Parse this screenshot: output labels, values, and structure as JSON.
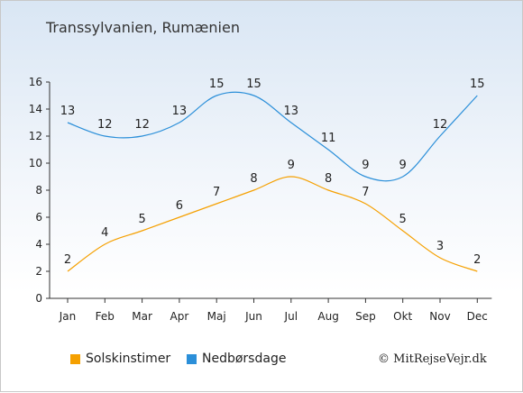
{
  "chart_data": {
    "type": "line",
    "title": "Transsylvanien, Rumænien",
    "categories": [
      "Jan",
      "Feb",
      "Mar",
      "Apr",
      "Maj",
      "Jun",
      "Jul",
      "Aug",
      "Sep",
      "Okt",
      "Nov",
      "Dec"
    ],
    "series": [
      {
        "name": "Solskinstimer",
        "color": "#f5a000",
        "values": [
          2,
          4,
          5,
          6,
          7,
          8,
          9,
          8,
          7,
          5,
          3,
          2
        ]
      },
      {
        "name": "Nedbørsdage",
        "color": "#2b8fd9",
        "values": [
          13,
          12,
          12,
          13,
          15,
          15,
          13,
          11,
          9,
          9,
          12,
          15
        ]
      }
    ],
    "ylim": [
      0,
      16
    ],
    "yticks": [
      0,
      2,
      4,
      6,
      8,
      10,
      12,
      14,
      16
    ],
    "grid": false,
    "legend": "bottom-left"
  },
  "credit": "© MitRejseVejr.dk"
}
